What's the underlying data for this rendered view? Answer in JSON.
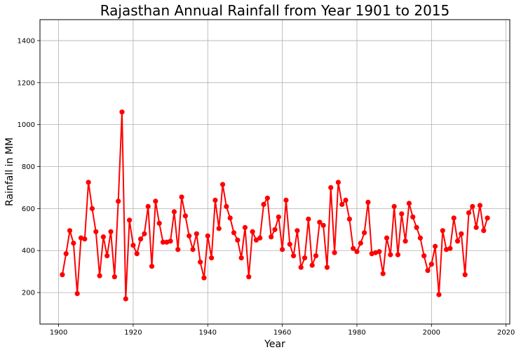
{
  "chart_data": {
    "type": "line",
    "title": "Rajasthan Annual Rainfall from Year 1901 to 2015",
    "xlabel": "Year",
    "ylabel": "Rainfall in MM",
    "xlim": [
      1895,
      2021
    ],
    "ylim": [
      50,
      1500
    ],
    "x_ticks": [
      1900,
      1920,
      1940,
      1960,
      1980,
      2000,
      2020
    ],
    "y_ticks": [
      200,
      400,
      600,
      800,
      1000,
      1200,
      1400
    ],
    "grid": true,
    "legend": "none",
    "series": [
      {
        "color": "#ff0000",
        "marker": "circle",
        "x": [
          1901,
          1902,
          1903,
          1904,
          1905,
          1906,
          1907,
          1908,
          1909,
          1910,
          1911,
          1912,
          1913,
          1914,
          1915,
          1916,
          1917,
          1918,
          1919,
          1920,
          1921,
          1922,
          1923,
          1924,
          1925,
          1926,
          1927,
          1928,
          1929,
          1930,
          1931,
          1932,
          1933,
          1934,
          1935,
          1936,
          1937,
          1938,
          1939,
          1940,
          1941,
          1942,
          1943,
          1944,
          1945,
          1946,
          1947,
          1948,
          1949,
          1950,
          1951,
          1952,
          1953,
          1954,
          1955,
          1956,
          1957,
          1958,
          1959,
          1960,
          1961,
          1962,
          1963,
          1964,
          1965,
          1966,
          1967,
          1968,
          1969,
          1970,
          1971,
          1972,
          1973,
          1974,
          1975,
          1976,
          1977,
          1978,
          1979,
          1980,
          1981,
          1982,
          1983,
          1984,
          1985,
          1986,
          1987,
          1988,
          1989,
          1990,
          1991,
          1992,
          1993,
          1994,
          1995,
          1996,
          1997,
          1998,
          1999,
          2000,
          2001,
          2002,
          2003,
          2004,
          2005,
          2006,
          2007,
          2008,
          2009,
          2010,
          2011,
          2012,
          2013,
          2014,
          2015
        ],
        "y": [
          285,
          385,
          495,
          435,
          195,
          460,
          455,
          725,
          600,
          490,
          280,
          465,
          375,
          490,
          275,
          635,
          1060,
          170,
          545,
          425,
          385,
          455,
          480,
          610,
          325,
          635,
          530,
          440,
          440,
          445,
          585,
          405,
          655,
          565,
          470,
          405,
          480,
          345,
          270,
          470,
          365,
          640,
          505,
          715,
          610,
          555,
          485,
          450,
          365,
          510,
          275,
          490,
          450,
          460,
          620,
          650,
          465,
          500,
          560,
          405,
          640,
          430,
          375,
          495,
          320,
          365,
          550,
          330,
          375,
          535,
          520,
          320,
          700,
          390,
          725,
          620,
          640,
          550,
          410,
          395,
          435,
          485,
          630,
          385,
          390,
          395,
          290,
          460,
          380,
          610,
          380,
          575,
          445,
          625,
          560,
          510,
          460,
          375,
          305,
          335,
          420,
          190,
          495,
          405,
          410,
          555,
          445,
          480,
          285,
          580,
          610,
          510,
          615,
          495,
          555
        ]
      }
    ]
  }
}
